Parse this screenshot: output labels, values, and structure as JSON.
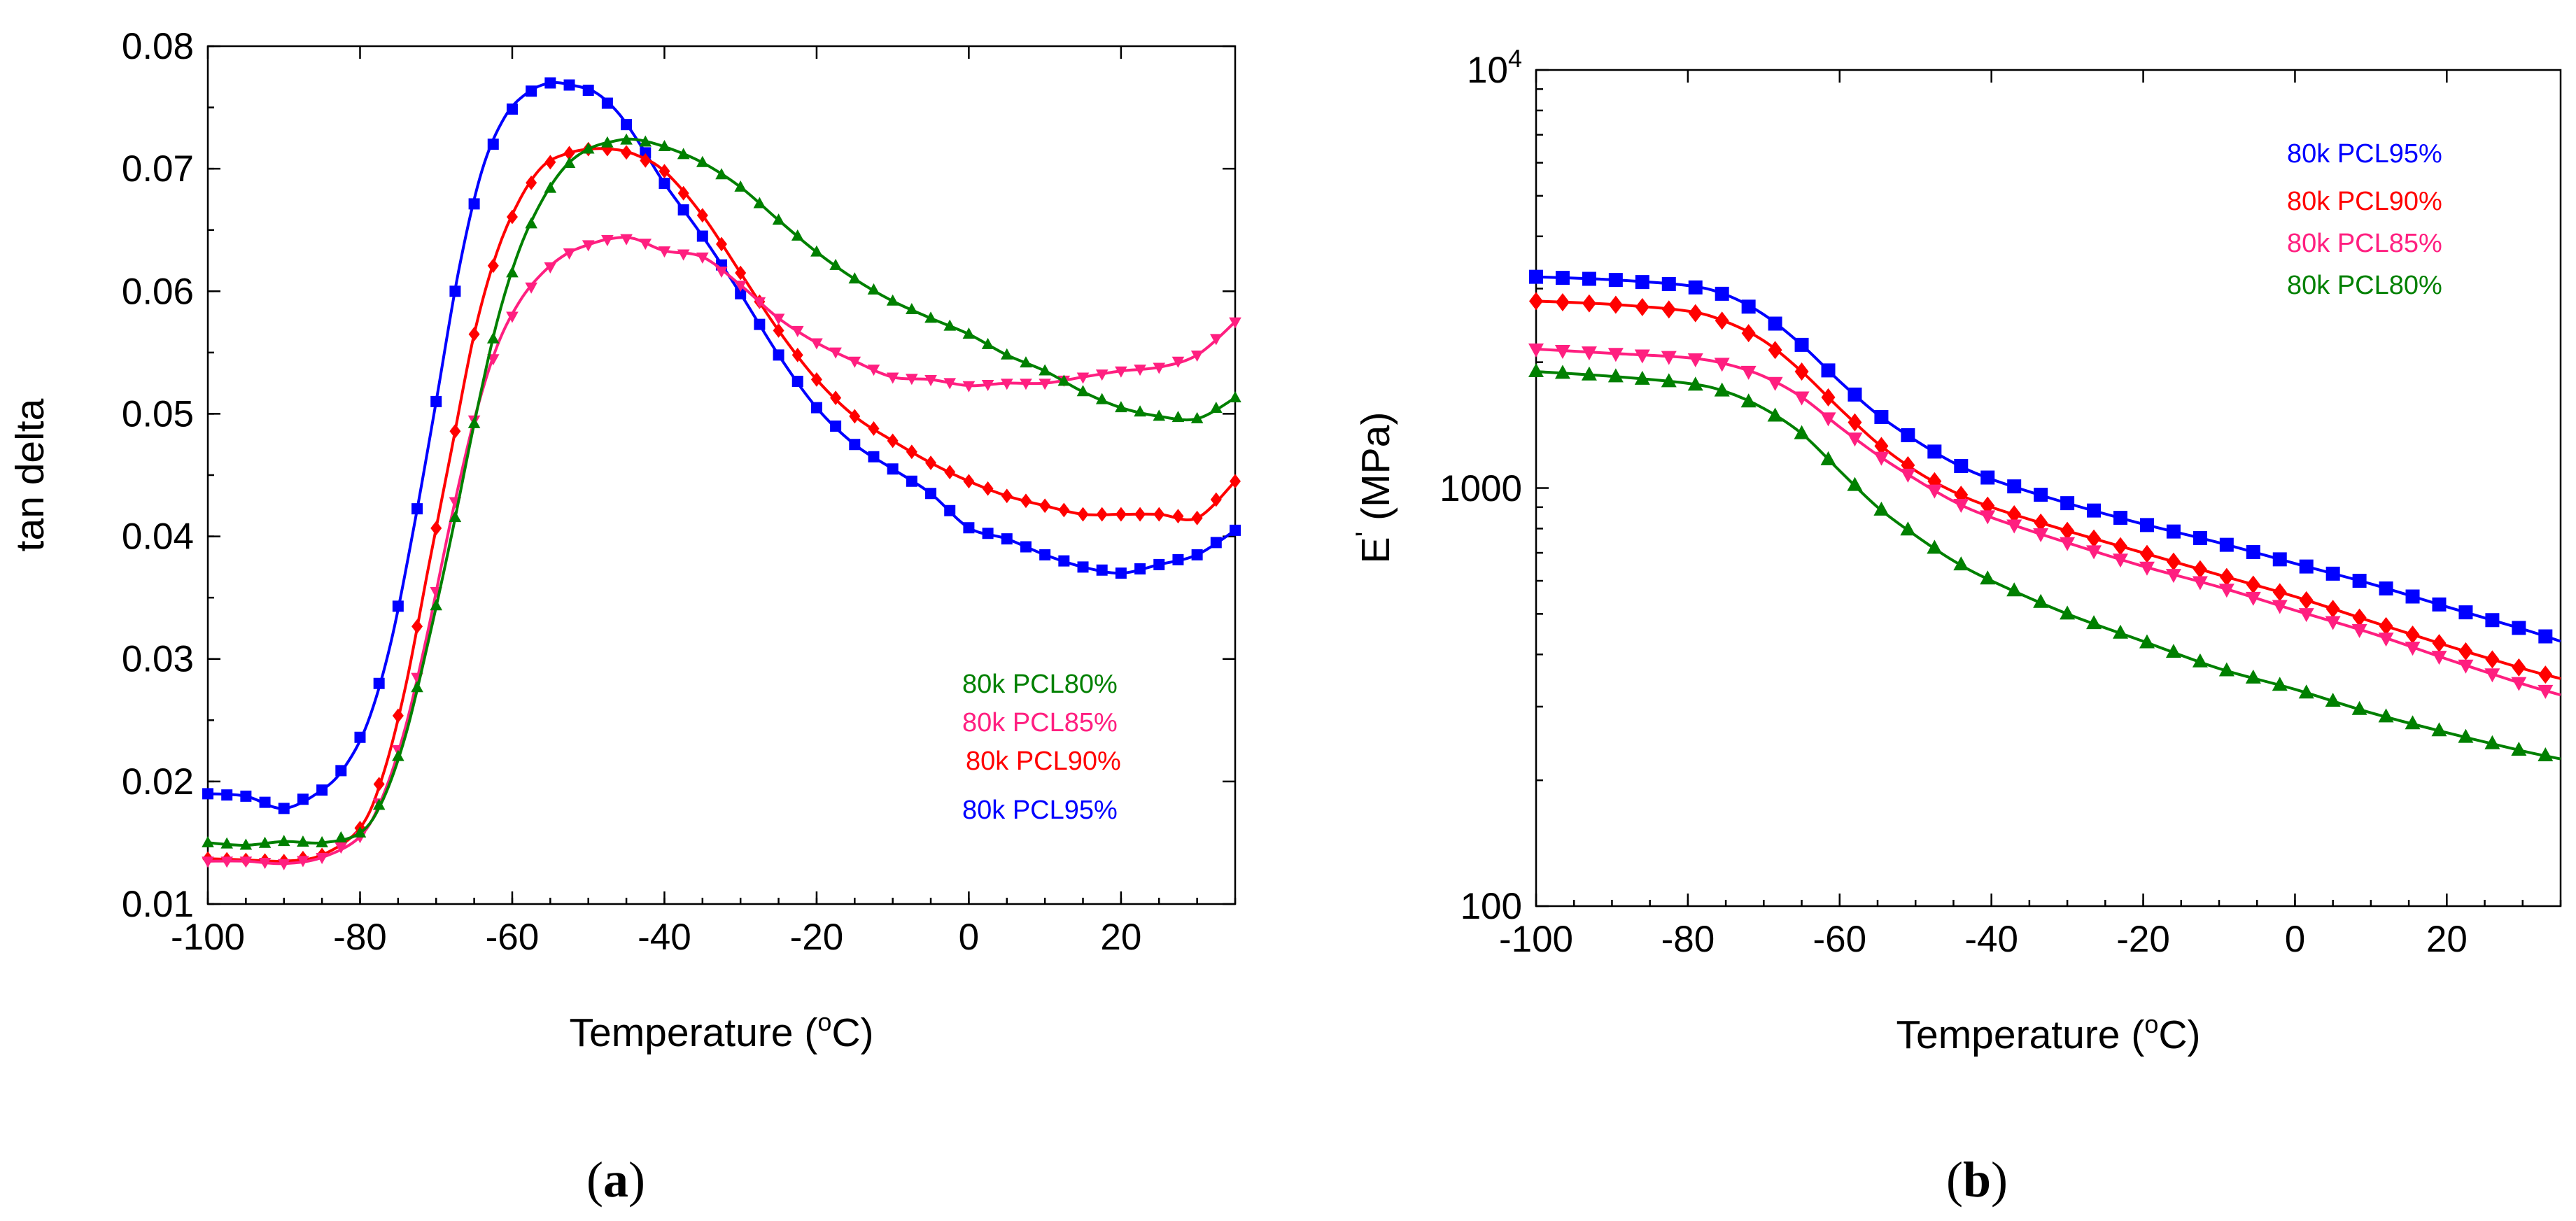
{
  "panels": [
    {
      "id": "a",
      "caption_label": "a"
    },
    {
      "id": "b",
      "caption_label": "b"
    }
  ],
  "chart_data": [
    {
      "type": "line",
      "xlabel": "Temperature (°C)",
      "xlabel_pre": "Temperature (",
      "xlabel_sup": "o",
      "xlabel_post": "C)",
      "ylabel": "tan delta",
      "xlim": [
        -100,
        35
      ],
      "ylim": [
        0.01,
        0.08
      ],
      "y_scale": "linear",
      "x_ticks": [
        "-100",
        "-80",
        "-60",
        "-40",
        "-20",
        "0",
        "20"
      ],
      "x_tick_values": [
        -100,
        -80,
        -60,
        -40,
        -20,
        0,
        20
      ],
      "y_ticks": [
        "0.01",
        "0.02",
        "0.03",
        "0.04",
        "0.05",
        "0.06",
        "0.07",
        "0.08"
      ],
      "y_tick_values": [
        0.01,
        0.02,
        0.03,
        0.04,
        0.05,
        0.06,
        0.07,
        0.08
      ],
      "legend_position": "lower-right",
      "legend": [
        "80k PCL80%",
        "80k PCL85%",
        "80k PCL90%",
        "80k PCL95%"
      ],
      "series": [
        {
          "name": "80k PCL95%",
          "color": "#0000ff",
          "marker": "square",
          "x": [
            -100,
            -95,
            -90,
            -85,
            -82,
            -79,
            -76,
            -73,
            -70,
            -67,
            -64,
            -61,
            -58,
            -55,
            -52,
            -49,
            -46,
            -43,
            -40,
            -35,
            -30,
            -25,
            -20,
            -15,
            -10,
            -5,
            0,
            5,
            10,
            15,
            20,
            25,
            30,
            35
          ],
          "values": [
            0.019,
            0.0188,
            0.0178,
            0.0193,
            0.0212,
            0.0248,
            0.0312,
            0.0405,
            0.051,
            0.0618,
            0.0698,
            0.0742,
            0.0762,
            0.077,
            0.0768,
            0.0762,
            0.0745,
            0.0718,
            0.0688,
            0.0645,
            0.0598,
            0.0548,
            0.0505,
            0.0475,
            0.0455,
            0.0435,
            0.0407,
            0.0398,
            0.0385,
            0.0375,
            0.037,
            0.0377,
            0.0385,
            0.0405
          ]
        },
        {
          "name": "80k PCL90%",
          "color": "#ff0000",
          "marker": "diamond",
          "x": [
            -100,
            -95,
            -90,
            -85,
            -80,
            -77,
            -74,
            -71,
            -68,
            -65,
            -62,
            -59,
            -56,
            -53,
            -50,
            -47,
            -44,
            -40,
            -35,
            -30,
            -25,
            -20,
            -15,
            -10,
            -5,
            0,
            5,
            10,
            15,
            20,
            25,
            30,
            35
          ],
          "values": [
            0.0137,
            0.0136,
            0.0135,
            0.014,
            0.0162,
            0.0205,
            0.0278,
            0.0375,
            0.047,
            0.0565,
            0.0632,
            0.0675,
            0.0702,
            0.0712,
            0.0716,
            0.0716,
            0.0712,
            0.0698,
            0.0662,
            0.0615,
            0.0568,
            0.0528,
            0.0498,
            0.0478,
            0.046,
            0.0445,
            0.0433,
            0.0425,
            0.0418,
            0.0418,
            0.0418,
            0.0415,
            0.0445
          ]
        },
        {
          "name": "80k PCL85%",
          "color": "#ff1f80",
          "marker": "triangle-down",
          "x": [
            -100,
            -95,
            -90,
            -85,
            -80,
            -77,
            -74,
            -71,
            -68,
            -65,
            -62,
            -59,
            -56,
            -53,
            -50,
            -47,
            -44,
            -40,
            -35,
            -30,
            -25,
            -20,
            -15,
            -10,
            -5,
            0,
            5,
            10,
            15,
            20,
            25,
            30,
            35
          ],
          "values": [
            0.0135,
            0.0135,
            0.0133,
            0.0138,
            0.0155,
            0.0188,
            0.0245,
            0.0325,
            0.0415,
            0.0495,
            0.0555,
            0.0592,
            0.0615,
            0.063,
            0.0638,
            0.0643,
            0.0643,
            0.0633,
            0.0628,
            0.0605,
            0.0578,
            0.0558,
            0.0543,
            0.053,
            0.0528,
            0.0523,
            0.0525,
            0.0525,
            0.053,
            0.0535,
            0.0538,
            0.0548,
            0.0575
          ]
        },
        {
          "name": "80k PCL80%",
          "color": "#008000",
          "marker": "triangle-up",
          "x": [
            -100,
            -95,
            -90,
            -85,
            -80,
            -77,
            -74,
            -71,
            -68,
            -65,
            -62,
            -59,
            -56,
            -53,
            -50,
            -47,
            -44,
            -40,
            -35,
            -30,
            -25,
            -20,
            -15,
            -10,
            -5,
            0,
            5,
            10,
            15,
            20,
            25,
            30,
            35
          ],
          "values": [
            0.015,
            0.0148,
            0.0151,
            0.015,
            0.0158,
            0.0185,
            0.0238,
            0.0315,
            0.04,
            0.0492,
            0.0575,
            0.0635,
            0.0675,
            0.0702,
            0.0716,
            0.0722,
            0.0724,
            0.0718,
            0.0705,
            0.0685,
            0.0658,
            0.0632,
            0.061,
            0.0592,
            0.0578,
            0.0565,
            0.0548,
            0.0535,
            0.0518,
            0.0505,
            0.0498,
            0.0496,
            0.0513
          ]
        }
      ]
    },
    {
      "type": "line",
      "xlabel": "Temperature (°C)",
      "xlabel_pre": "Temperature (",
      "xlabel_sup": "o",
      "xlabel_post": "C)",
      "ylabel": "E' (MPa)",
      "ylabel_main": "E",
      "ylabel_sup": "'",
      "ylabel_post": " (MPa)",
      "xlim": [
        -100,
        35
      ],
      "ylim": [
        100,
        10000
      ],
      "y_scale": "log",
      "x_ticks": [
        "-100",
        "-80",
        "-60",
        "-40",
        "-20",
        "0",
        "20"
      ],
      "x_tick_values": [
        -100,
        -80,
        -60,
        -40,
        -20,
        0,
        20
      ],
      "y_tick_values": [
        100,
        1000,
        10000
      ],
      "y_tick_100": "100",
      "y_tick_1000": "1000",
      "y_tick_1e4_base": "10",
      "y_tick_1e4_exp": "4",
      "legend_position": "top-right",
      "legend": [
        "80k PCL95%",
        "80k PCL90%",
        "80k PCL85%",
        "80k PCL80%"
      ],
      "series": [
        {
          "name": "80k PCL95%",
          "color": "#0000ff",
          "marker": "square",
          "x": [
            -100,
            -90,
            -80,
            -75,
            -70,
            -65,
            -60,
            -55,
            -50,
            -45,
            -40,
            -30,
            -20,
            -10,
            0,
            10,
            20,
            30,
            35
          ],
          "values": [
            3200,
            3150,
            3050,
            2900,
            2600,
            2200,
            1800,
            1500,
            1300,
            1150,
            1050,
            920,
            820,
            740,
            660,
            590,
            520,
            460,
            430
          ]
        },
        {
          "name": "80k PCL90%",
          "color": "#ff0000",
          "marker": "diamond",
          "x": [
            -100,
            -90,
            -80,
            -75,
            -70,
            -65,
            -60,
            -55,
            -50,
            -45,
            -40,
            -30,
            -20,
            -10,
            0,
            10,
            20,
            30,
            35
          ],
          "values": [
            2800,
            2750,
            2650,
            2500,
            2250,
            1900,
            1550,
            1280,
            1100,
            980,
            900,
            790,
            700,
            620,
            550,
            480,
            420,
            370,
            350
          ]
        },
        {
          "name": "80k PCL85%",
          "color": "#ff1f80",
          "marker": "triangle-down",
          "x": [
            -100,
            -90,
            -80,
            -75,
            -70,
            -65,
            -60,
            -55,
            -50,
            -45,
            -40,
            -30,
            -20,
            -10,
            0,
            10,
            20,
            30,
            35
          ],
          "values": [
            2150,
            2100,
            2050,
            1980,
            1850,
            1650,
            1400,
            1200,
            1050,
            930,
            850,
            740,
            650,
            580,
            510,
            450,
            390,
            340,
            320
          ]
        },
        {
          "name": "80k PCL80%",
          "color": "#008000",
          "marker": "triangle-up",
          "x": [
            -100,
            -90,
            -80,
            -75,
            -70,
            -65,
            -60,
            -55,
            -50,
            -45,
            -40,
            -30,
            -20,
            -10,
            0,
            10,
            20,
            30,
            35
          ],
          "values": [
            1900,
            1850,
            1780,
            1700,
            1550,
            1350,
            1100,
            900,
            770,
            670,
            600,
            500,
            430,
            370,
            330,
            290,
            260,
            235,
            225
          ]
        }
      ]
    }
  ]
}
